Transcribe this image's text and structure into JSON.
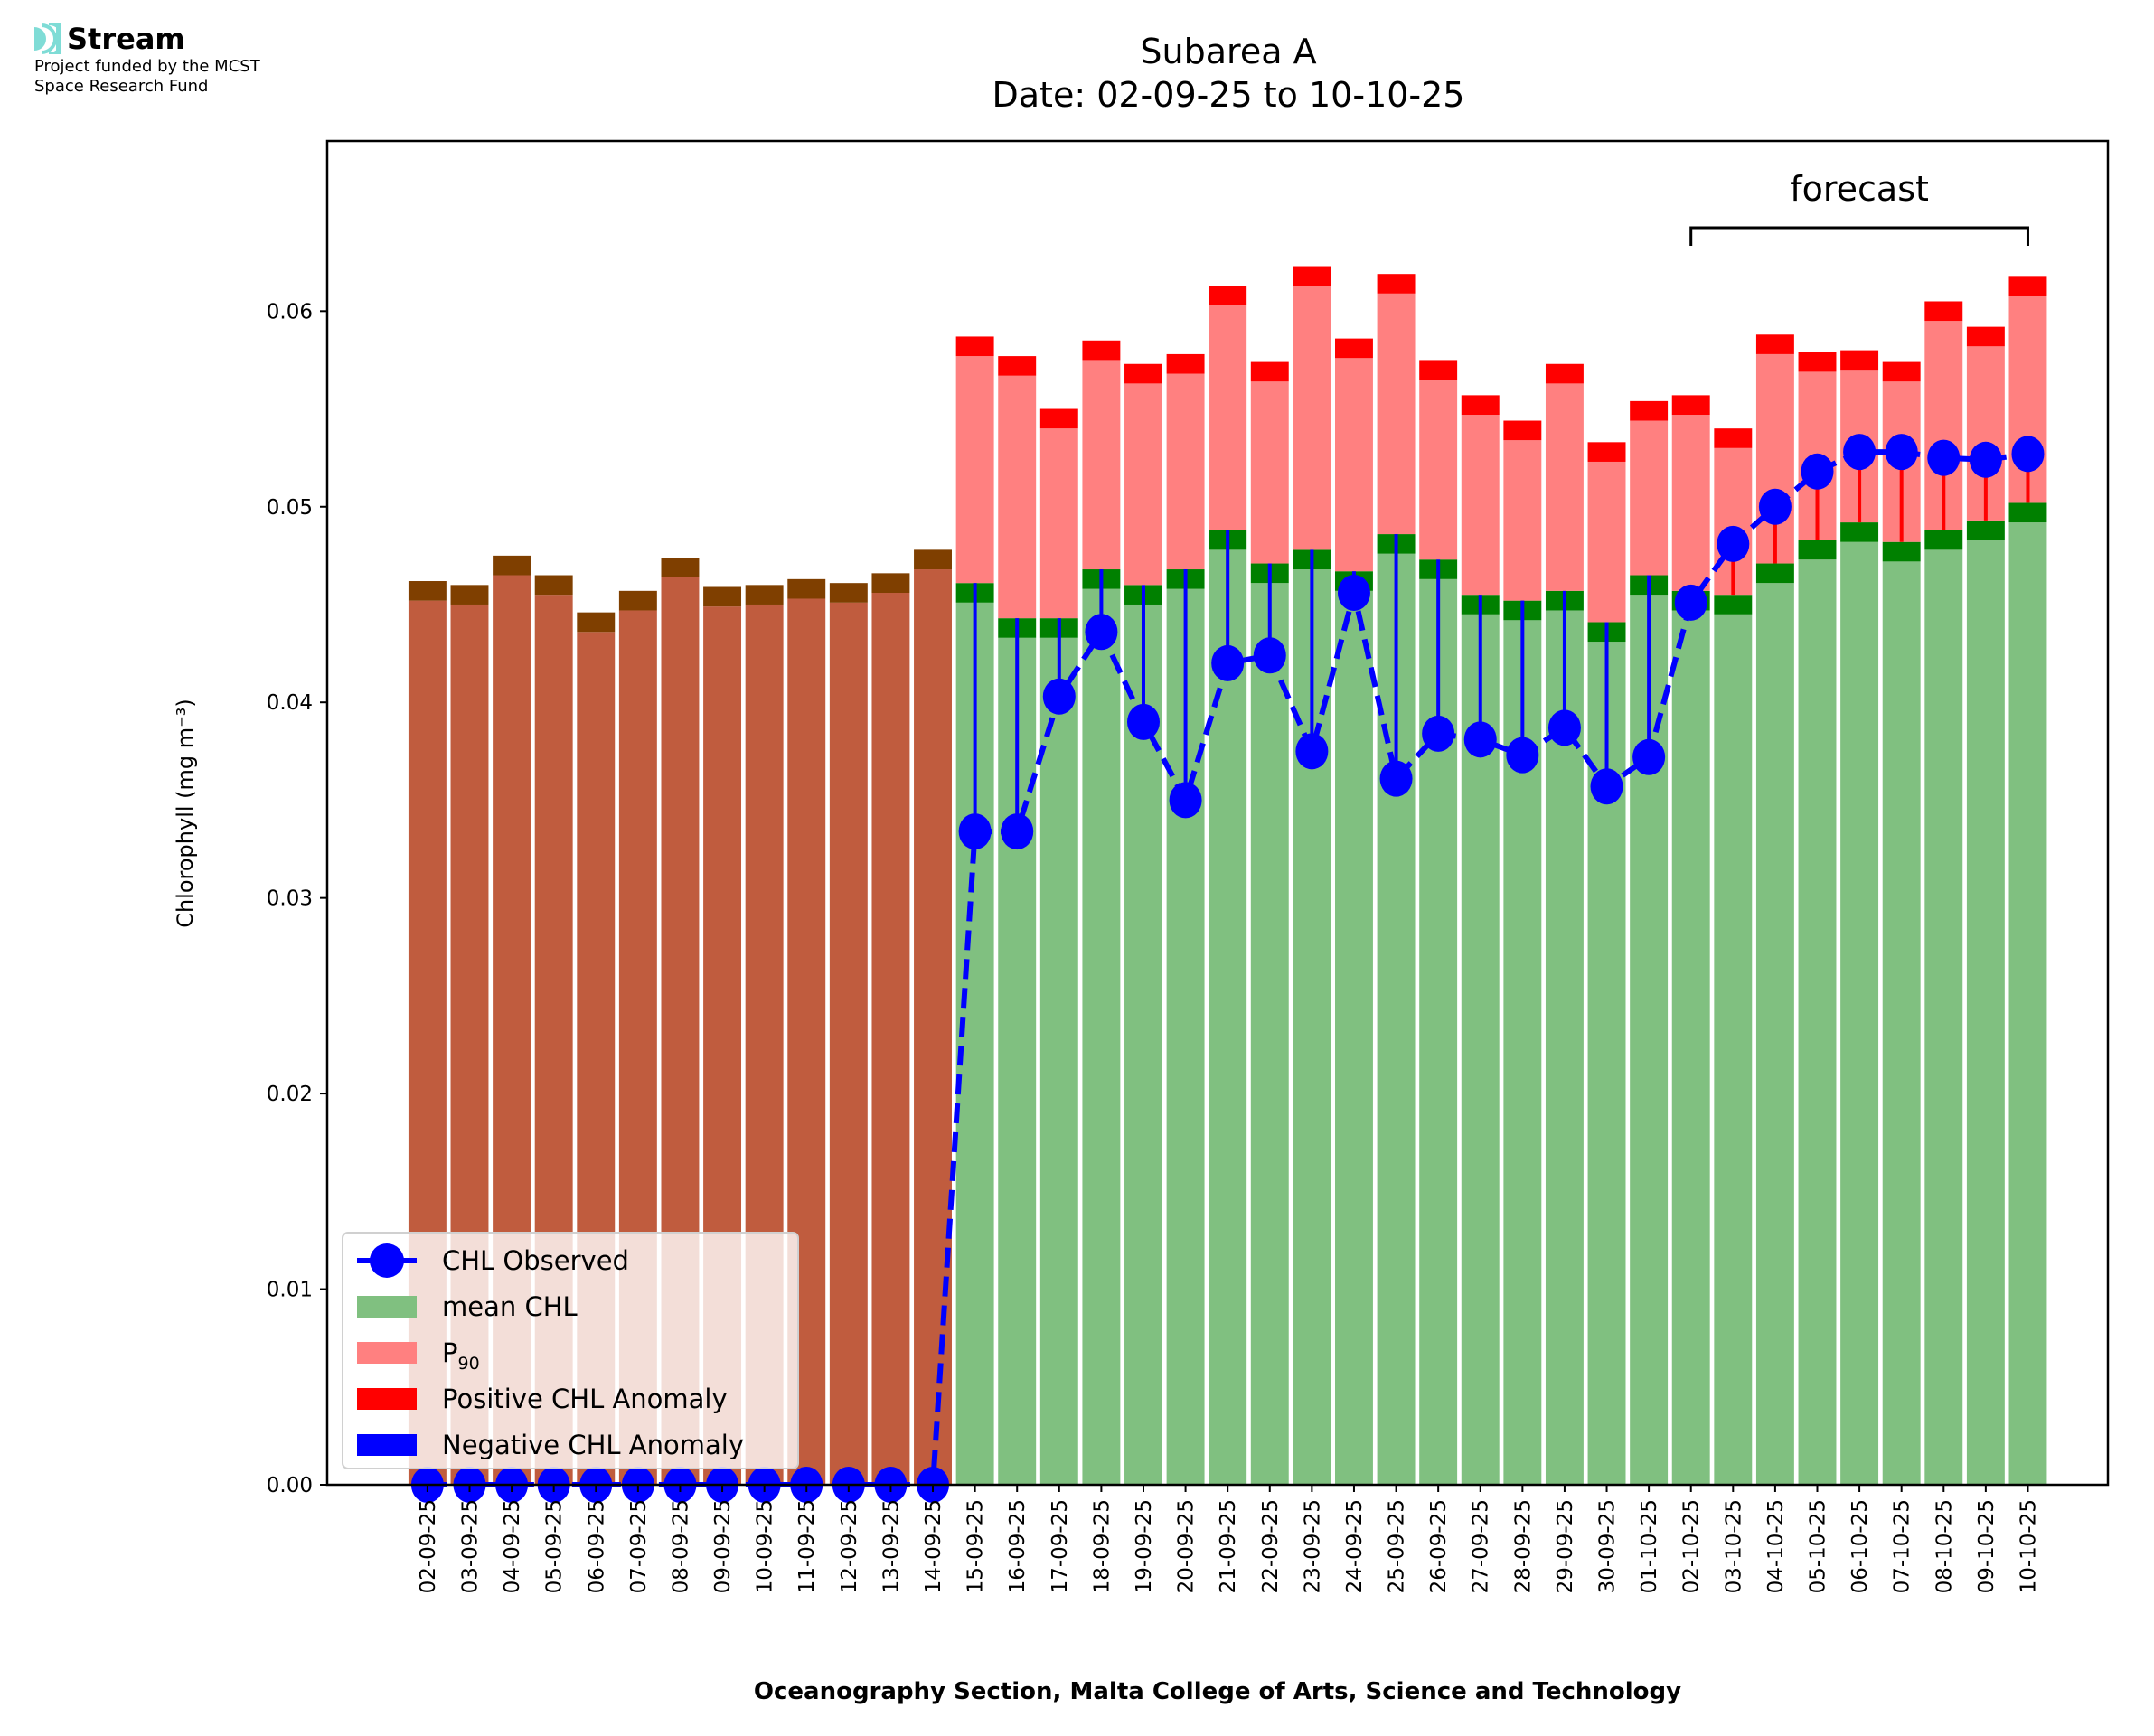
{
  "logo": {
    "name": "Stream",
    "line1": "Project funded by the MCST",
    "line2": "Space Research Fund"
  },
  "colors": {
    "mean": "#80c080",
    "mean_top": "#008000",
    "p90": "#ff8080",
    "p90_top": "#ff0000",
    "hist": "#c05c3e",
    "hist_top": "#7f3f00",
    "observed": "#0000ff",
    "pos_anom": "#ff0000",
    "neg_anom": "#0000ff"
  },
  "chart_data": {
    "type": "bar",
    "title": "Subarea A",
    "subtitle": "Date: 02-09-25 to 10-10-25",
    "xlabel": "Oceanography Section, Malta College of Arts, Science and Technology",
    "ylabel": "Chlorophyll (mg m⁻³)",
    "ylim": [
      0,
      0.0687
    ],
    "yticks": [
      "0.00",
      "0.01",
      "0.02",
      "0.03",
      "0.04",
      "0.05",
      "0.06"
    ],
    "ytick_values": [
      0,
      0.01,
      0.02,
      0.03,
      0.04,
      0.05,
      0.06
    ],
    "annotation": {
      "text": "forecast",
      "from": "02-10-25",
      "to": "10-10-25"
    },
    "legend_position": "lower-left",
    "legend": [
      "CHL Observed",
      "mean CHL",
      "P",
      "Positive CHL Anomaly",
      "Negative CHL Anomaly"
    ],
    "legend_p_sub": "90",
    "categories": [
      "02-09-25",
      "03-09-25",
      "04-09-25",
      "05-09-25",
      "06-09-25",
      "07-09-25",
      "08-09-25",
      "09-09-25",
      "10-09-25",
      "11-09-25",
      "12-09-25",
      "13-09-25",
      "14-09-25",
      "15-09-25",
      "16-09-25",
      "17-09-25",
      "18-09-25",
      "19-09-25",
      "20-09-25",
      "21-09-25",
      "22-09-25",
      "23-09-25",
      "24-09-25",
      "25-09-25",
      "26-09-25",
      "27-09-25",
      "28-09-25",
      "29-09-25",
      "30-09-25",
      "01-10-25",
      "02-10-25",
      "03-10-25",
      "04-10-25",
      "05-10-25",
      "06-10-25",
      "07-10-25",
      "08-10-25",
      "09-10-25",
      "10-10-25"
    ],
    "historical_bar": [
      0.0462,
      0.046,
      0.0475,
      0.0465,
      0.0446,
      0.0457,
      0.0474,
      0.0459,
      0.046,
      0.0463,
      0.0461,
      0.0466,
      0.0478
    ],
    "series": [
      {
        "name": "mean CHL",
        "values": [
          null,
          null,
          null,
          null,
          null,
          null,
          null,
          null,
          null,
          null,
          null,
          null,
          null,
          0.0461,
          0.0443,
          0.0443,
          0.0468,
          0.046,
          0.0468,
          0.0488,
          0.0471,
          0.0478,
          0.0467,
          0.0486,
          0.0473,
          0.0455,
          0.0452,
          0.0457,
          0.0441,
          0.0465,
          0.0457,
          0.0455,
          0.0471,
          0.0483,
          0.0492,
          0.0482,
          0.0488,
          0.0493,
          0.0502
        ]
      },
      {
        "name": "P90",
        "values": [
          null,
          null,
          null,
          null,
          null,
          null,
          null,
          null,
          null,
          null,
          null,
          null,
          null,
          0.0587,
          0.0577,
          0.055,
          0.0585,
          0.0573,
          0.0578,
          0.0613,
          0.0574,
          0.0623,
          0.0586,
          0.0619,
          0.0575,
          0.0557,
          0.0544,
          0.0573,
          0.0533,
          0.0554,
          0.0557,
          0.054,
          0.0588,
          0.0579,
          0.058,
          0.0574,
          0.0605,
          0.0592,
          0.0618
        ]
      },
      {
        "name": "CHL Observed",
        "values": [
          0,
          0,
          0,
          0,
          0,
          0,
          0,
          0,
          0,
          0,
          0,
          0,
          0,
          0.0334,
          0.0334,
          0.0403,
          0.0436,
          0.039,
          0.035,
          0.042,
          0.0424,
          0.0375,
          0.0456,
          0.0361,
          0.0384,
          0.0381,
          0.0373,
          0.0387,
          0.0357,
          0.0372,
          0.0451,
          0.0481,
          0.05,
          0.0518,
          0.0528,
          0.0528,
          0.0525,
          0.0524,
          0.0527
        ]
      }
    ]
  }
}
